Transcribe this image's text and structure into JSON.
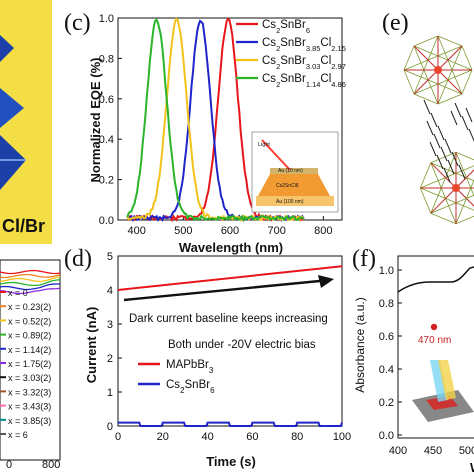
{
  "panels": {
    "c": "(c)",
    "d": "(d)",
    "e": "(e)",
    "f": "(f)"
  },
  "left_partial": {
    "label_cl_br": "Cl/Br",
    "ticks": [
      "0",
      "800"
    ],
    "series_labels": [
      "x = 0",
      "x = 0.23(2)",
      "x = 0.52(2)",
      "x = 0.89(2)",
      "x = 1.14(2)",
      "x = 1.75(2)",
      "x = 3.03(2)",
      "x = 3.32(3)",
      "x = 3.43(3)",
      "x = 3.85(3)",
      "x = 6"
    ]
  },
  "inset_c": {
    "light": "Light",
    "au_top": "Au (10 nm)",
    "mid": "Cs2SnCl6",
    "au_bot": "Au (100 nm)"
  },
  "right_partial": {
    "ylabel": "Absorbance (a.u.)",
    "annotation": "470 nm",
    "xticks": [
      "400",
      "450",
      "500"
    ],
    "xlabel_fragment": "W",
    "yticks": [
      "1.0",
      "0.8",
      "0.6",
      "0.4",
      "0.2",
      "0.0"
    ]
  },
  "colors": {
    "red": "#e8151b",
    "blue": "#1f25c8",
    "yellow": "#f2c21a",
    "green": "#2ab52a"
  },
  "chart_data": [
    {
      "type": "line",
      "id": "c",
      "xlabel": "Wavelength (nm)",
      "ylabel": "Normalized EQE (%)",
      "xlim": [
        360,
        840
      ],
      "ylim": [
        0,
        1.0
      ],
      "xticks": [
        "400",
        "500",
        "600",
        "700",
        "800"
      ],
      "yticks": [
        "0.0",
        "0.2",
        "0.4",
        "0.6",
        "0.8",
        "1.0"
      ],
      "legend": "top-right",
      "series": [
        {
          "name": "Cs2SnBr6",
          "label_main": "Cs",
          "label_parts": [
            [
              "2",
              "sub"
            ],
            [
              "SnBr",
              "n"
            ],
            [
              "6",
              "sub"
            ]
          ],
          "color": "#e8151b",
          "center": 596,
          "width": 30
        },
        {
          "name": "Cs2SnBr3.85Cl2.15",
          "label_main": "Cs",
          "label_parts": [
            [
              "2",
              "sub"
            ],
            [
              "SnBr",
              "n"
            ],
            [
              "3.85",
              "sub"
            ],
            [
              "Cl",
              "n"
            ],
            [
              "2.15",
              "sub"
            ]
          ],
          "color": "#1f25c8",
          "center": 537,
          "width": 30
        },
        {
          "name": "Cs2SnBr3.03Cl2.97",
          "label_main": "Cs",
          "label_parts": [
            [
              "2",
              "sub"
            ],
            [
              "SnBr",
              "n"
            ],
            [
              "3.03",
              "sub"
            ],
            [
              "Cl",
              "n"
            ],
            [
              "2.97",
              "sub"
            ]
          ],
          "color": "#f2c21a",
          "center": 486,
          "width": 30
        },
        {
          "name": "Cs2SnBr1.14Cl4.86",
          "label_main": "Cs",
          "label_parts": [
            [
              "2",
              "sub"
            ],
            [
              "SnBr",
              "n"
            ],
            [
              "1.14",
              "sub"
            ],
            [
              "Cl",
              "n"
            ],
            [
              "4.86",
              "sub"
            ]
          ],
          "color": "#2ab52a",
          "center": 443,
          "width": 30
        }
      ]
    },
    {
      "type": "line",
      "id": "d",
      "xlabel": "Time (s)",
      "ylabel": "Current (nA)",
      "xlim": [
        0,
        100
      ],
      "ylim": [
        0,
        5
      ],
      "xticks": [
        "0",
        "20",
        "40",
        "60",
        "80",
        "100"
      ],
      "yticks": [
        "0",
        "1",
        "2",
        "3",
        "4",
        "5"
      ],
      "annotation": "Dark current baseline keeps increasing",
      "bias_note": "Both under -20V electric bias",
      "series": [
        {
          "name": "MAPbBr3",
          "color": "#e8151b",
          "start": 4.0,
          "end": 4.7
        },
        {
          "name": "Cs2SnBr6",
          "color": "#1f25c8",
          "low": 0.0,
          "high": 0.1,
          "period": 20
        }
      ]
    }
  ]
}
